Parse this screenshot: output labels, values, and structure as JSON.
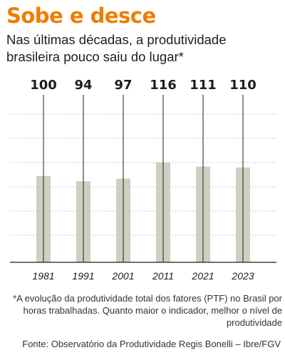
{
  "header": {
    "title": "Sobe e desce",
    "subtitle": "Nas últimas décadas, a produtividade brasileira pouco saiu do lugar*"
  },
  "colors": {
    "title": "#ef7d00",
    "bar": "#cfcfc1",
    "grid": "#b9b9b9",
    "text": "#1d1d1b"
  },
  "chart_data": {
    "type": "bar",
    "categories": [
      "1981",
      "1991",
      "2001",
      "2011",
      "2021",
      "2023"
    ],
    "values": [
      100,
      94,
      97,
      116,
      111,
      110
    ],
    "title": "Sobe e desce",
    "subtitle": "Nas últimas décadas, a produtividade brasileira pouco saiu do lugar*",
    "xlabel": "",
    "ylabel": "",
    "ylim": [
      0,
      140
    ],
    "grid": true,
    "legend": "none",
    "data_labels": true
  },
  "footnote": "*A evolução da produtividade total dos fatores (PTF) no Brasil por horas trabalhadas. Quanto maior o indicador, melhor o nível de produtividade",
  "source": "Fonte: Observatório da Produtividade Regis Bonelli – Ibre/FGV"
}
